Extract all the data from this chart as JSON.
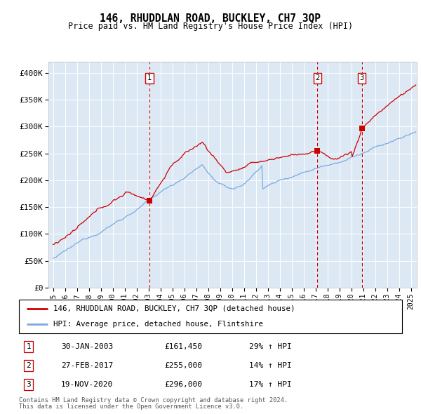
{
  "title": "146, RHUDDLAN ROAD, BUCKLEY, CH7 3QP",
  "subtitle": "Price paid vs. HM Land Registry's House Price Index (HPI)",
  "legend_line1": "146, RHUDDLAN ROAD, BUCKLEY, CH7 3QP (detached house)",
  "legend_line2": "HPI: Average price, detached house, Flintshire",
  "footer1": "Contains HM Land Registry data © Crown copyright and database right 2024.",
  "footer2": "This data is licensed under the Open Government Licence v3.0.",
  "sale_labels": [
    "1",
    "2",
    "3"
  ],
  "sale_dates_label": [
    "30-JAN-2003",
    "27-FEB-2017",
    "19-NOV-2020"
  ],
  "sale_prices_label": [
    "£161,450",
    "£255,000",
    "£296,000"
  ],
  "sale_hpi_label": [
    "29% ↑ HPI",
    "14% ↑ HPI",
    "17% ↑ HPI"
  ],
  "sale_years": [
    2003.08,
    2017.16,
    2020.89
  ],
  "sale_prices": [
    161450,
    255000,
    296000
  ],
  "ylim": [
    0,
    420000
  ],
  "yticks": [
    0,
    50000,
    100000,
    150000,
    200000,
    250000,
    300000,
    350000,
    400000
  ],
  "ytick_labels": [
    "£0",
    "£50K",
    "£100K",
    "£150K",
    "£200K",
    "£250K",
    "£300K",
    "£350K",
    "£400K"
  ],
  "hpi_color": "#7aaadd",
  "price_color": "#cc0000",
  "bg_color": "#dde8f5",
  "grid_color": "#ffffff"
}
